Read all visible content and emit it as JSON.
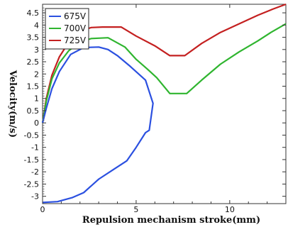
{
  "chart_data": {
    "type": "line",
    "xlabel": "Repulsion mechanism stroke(mm)",
    "ylabel": "Velocity(m/s)",
    "xlim": [
      0,
      13
    ],
    "ylim": [
      -3.3,
      4.85
    ],
    "x_ticks": [
      0,
      5,
      10
    ],
    "y_ticks": [
      4.5,
      4,
      3.5,
      3,
      2.5,
      2,
      1.5,
      1,
      0.5,
      0,
      -0.5,
      -1,
      -1.5,
      -2,
      -2.5,
      -3
    ],
    "grid": false,
    "legend_position": "top-left",
    "series": [
      {
        "name": "675V",
        "color": "#2b50e0",
        "points": [
          [
            0.0,
            -3.25
          ],
          [
            0.8,
            -3.22
          ],
          [
            1.6,
            -3.05
          ],
          [
            2.2,
            -2.85
          ],
          [
            3.0,
            -2.3
          ],
          [
            3.8,
            -1.9
          ],
          [
            4.5,
            -1.55
          ],
          [
            5.0,
            -1.0
          ],
          [
            5.5,
            -0.4
          ],
          [
            5.7,
            -0.3
          ],
          [
            5.9,
            0.8
          ],
          [
            5.5,
            1.75
          ],
          [
            4.7,
            2.3
          ],
          [
            4.0,
            2.75
          ],
          [
            3.5,
            3.0
          ],
          [
            3.0,
            3.1
          ],
          [
            2.2,
            3.08
          ],
          [
            1.5,
            2.8
          ],
          [
            0.9,
            2.1
          ],
          [
            0.5,
            1.4
          ],
          [
            0.2,
            0.6
          ],
          [
            0.0,
            0.0
          ]
        ]
      },
      {
        "name": "700V",
        "color": "#2fb52f",
        "points": [
          [
            0.0,
            0.0
          ],
          [
            0.2,
            0.9
          ],
          [
            0.5,
            1.8
          ],
          [
            0.9,
            2.45
          ],
          [
            1.4,
            2.95
          ],
          [
            2.0,
            3.3
          ],
          [
            2.6,
            3.45
          ],
          [
            3.5,
            3.48
          ],
          [
            4.4,
            3.1
          ],
          [
            5.0,
            2.6
          ],
          [
            5.6,
            2.2
          ],
          [
            6.1,
            1.85
          ],
          [
            6.8,
            1.2
          ],
          [
            7.7,
            1.2
          ],
          [
            8.5,
            1.75
          ],
          [
            9.5,
            2.4
          ],
          [
            10.5,
            2.9
          ],
          [
            11.5,
            3.35
          ],
          [
            12.2,
            3.7
          ],
          [
            13.0,
            4.05
          ]
        ]
      },
      {
        "name": "725V",
        "color": "#c42020",
        "points": [
          [
            0.0,
            0.0
          ],
          [
            0.2,
            1.0
          ],
          [
            0.5,
            1.95
          ],
          [
            0.9,
            2.7
          ],
          [
            1.4,
            3.3
          ],
          [
            2.0,
            3.75
          ],
          [
            2.6,
            3.9
          ],
          [
            3.2,
            3.92
          ],
          [
            4.2,
            3.92
          ],
          [
            5.0,
            3.55
          ],
          [
            6.0,
            3.15
          ],
          [
            6.8,
            2.75
          ],
          [
            7.6,
            2.75
          ],
          [
            8.5,
            3.25
          ],
          [
            9.5,
            3.7
          ],
          [
            10.5,
            4.05
          ],
          [
            11.5,
            4.4
          ],
          [
            12.3,
            4.65
          ],
          [
            13.0,
            4.85
          ]
        ]
      }
    ]
  }
}
